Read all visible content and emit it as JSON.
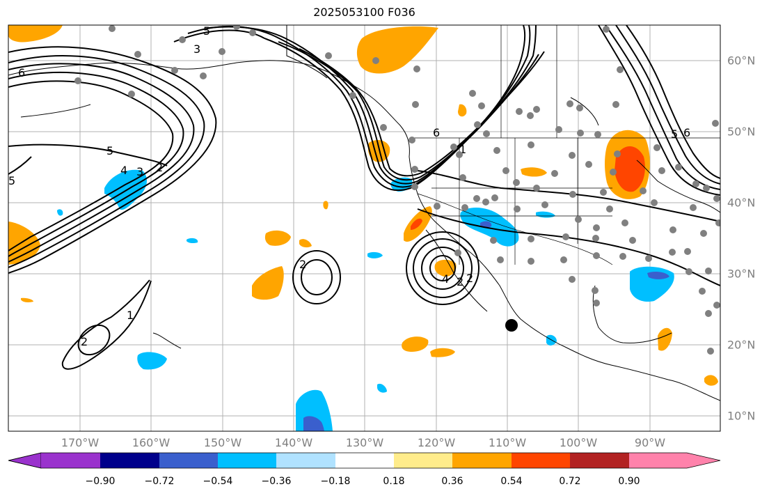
{
  "title": "2025053100 F036",
  "colors": {
    "land_line": "#000000",
    "grid": "#b0b0b0",
    "station": "#808080",
    "contour": "#000000"
  },
  "lon_labels": [
    "170°W",
    "160°W",
    "150°W",
    "140°W",
    "130°W",
    "120°W",
    "110°W",
    "100°W",
    "90°W"
  ],
  "lat_labels": [
    "60°N",
    "50°N",
    "40°N",
    "30°N",
    "20°N",
    "10°N"
  ],
  "colorbar": {
    "labels": [
      "−0.90",
      "−0.72",
      "−0.54",
      "−0.36",
      "−0.18",
      "0.18",
      "0.36",
      "0.54",
      "0.72",
      "0.90"
    ],
    "colors": [
      "#9a32cd",
      "#00008b",
      "#3a5fcd",
      "#00bfff",
      "#b0e2ff",
      "#ffffff",
      "#ffec8b",
      "#ffa500",
      "#ff4500",
      "#b22222",
      "#ff82ab"
    ]
  },
  "contour_labels": [
    "5",
    "3",
    "6",
    "5",
    "4",
    "3",
    "2",
    "1",
    "2",
    "6",
    "5",
    "6",
    "5",
    "4",
    "2",
    "2",
    "1",
    "2"
  ]
}
